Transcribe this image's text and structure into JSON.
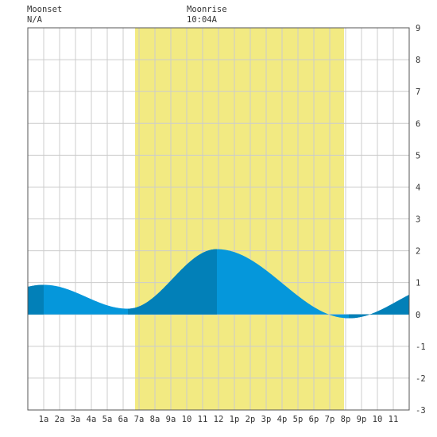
{
  "header": {
    "moonset_label": "Moonset",
    "moonset_time": "N/A",
    "moonrise_label": "Moonrise",
    "moonrise_time": "10:04A"
  },
  "colors": {
    "daylight": "#f2ea82",
    "tide_light": "#0597db",
    "tide_dark": "#0280b8",
    "grid": "#cccccc",
    "background": "#ffffff",
    "axis": "#555555"
  },
  "chart_data": {
    "type": "area",
    "x_tick_labels": [
      "1a",
      "2a",
      "3a",
      "4a",
      "5a",
      "6a",
      "7a",
      "8a",
      "9a",
      "10",
      "11",
      "12",
      "1p",
      "2p",
      "3p",
      "4p",
      "5p",
      "6p",
      "7p",
      "8p",
      "9p",
      "10",
      "11"
    ],
    "x_range_hours": [
      0,
      24
    ],
    "ylim": [
      -3,
      9
    ],
    "y_ticks": [
      -3,
      -2,
      -1,
      0,
      1,
      2,
      3,
      4,
      5,
      6,
      7,
      8,
      9
    ],
    "daylight_hours": [
      6.75,
      19.9
    ],
    "tide_extremes": [
      {
        "hour": 1.0,
        "height": 0.93,
        "kind": "high"
      },
      {
        "hour": 6.3,
        "height": 0.18,
        "kind": "low"
      },
      {
        "hour": 11.9,
        "height": 2.05,
        "kind": "high"
      },
      {
        "hour": 20.2,
        "height": -0.12,
        "kind": "low"
      }
    ],
    "tide_end_height": 0.6,
    "dark_bands_hours": [
      [
        0,
        1.0
      ],
      [
        6.3,
        11.9
      ],
      [
        20.2,
        24
      ]
    ],
    "grid": true
  }
}
